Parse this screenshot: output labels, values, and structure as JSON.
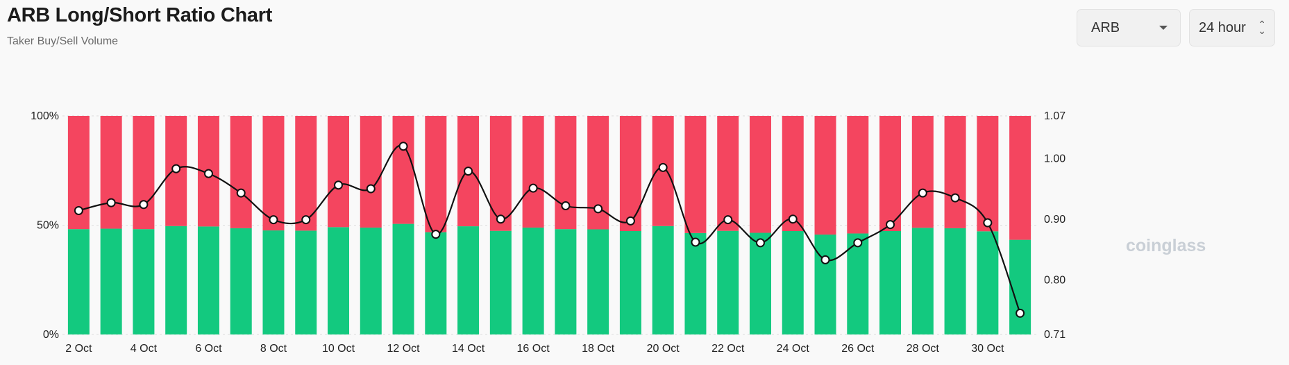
{
  "header": {
    "title": "ARB Long/Short Ratio Chart",
    "subtitle": "Taker Buy/Sell Volume"
  },
  "controls": {
    "coin": "ARB",
    "coin_icon": "chevron-down-icon",
    "period": "24 hour",
    "period_icon": "up-down-chevron-icon"
  },
  "watermark": "coinglass",
  "colors": {
    "long": "#13c97f",
    "short": "#f4455f",
    "ratio_line": "#111111"
  },
  "chart_data": {
    "type": "bar",
    "stacked": true,
    "categories": [
      "2 Oct",
      "3 Oct",
      "4 Oct",
      "5 Oct",
      "6 Oct",
      "7 Oct",
      "8 Oct",
      "9 Oct",
      "10 Oct",
      "11 Oct",
      "12 Oct",
      "13 Oct",
      "14 Oct",
      "15 Oct",
      "16 Oct",
      "17 Oct",
      "18 Oct",
      "19 Oct",
      "20 Oct",
      "21 Oct",
      "22 Oct",
      "23 Oct",
      "24 Oct",
      "25 Oct",
      "26 Oct",
      "27 Oct",
      "28 Oct",
      "29 Oct",
      "30 Oct",
      "31 Oct"
    ],
    "x_tick_labels": [
      "2 Oct",
      "4 Oct",
      "6 Oct",
      "8 Oct",
      "10 Oct",
      "12 Oct",
      "14 Oct",
      "16 Oct",
      "18 Oct",
      "20 Oct",
      "22 Oct",
      "24 Oct",
      "26 Oct",
      "28 Oct",
      "30 Oct"
    ],
    "series": [
      {
        "role": "long",
        "axis": "left",
        "values": [
          48.2,
          48.4,
          48.2,
          49.6,
          49.4,
          48.6,
          47.6,
          47.5,
          49.1,
          48.9,
          50.6,
          46.8,
          49.5,
          47.4,
          48.9,
          48.2,
          48.1,
          47.3,
          49.6,
          46.4,
          47.4,
          46.5,
          47.3,
          45.7,
          46.2,
          47.3,
          48.8,
          48.6,
          47.2,
          43.3
        ]
      },
      {
        "role": "short",
        "axis": "left",
        "values": [
          51.8,
          51.6,
          51.8,
          50.4,
          50.6,
          51.4,
          52.4,
          52.5,
          50.9,
          51.1,
          49.4,
          53.2,
          50.5,
          52.6,
          51.1,
          51.8,
          51.9,
          52.7,
          50.4,
          53.6,
          52.6,
          53.5,
          52.7,
          54.3,
          53.8,
          52.7,
          51.2,
          51.4,
          52.8,
          56.7
        ]
      },
      {
        "role": "ratio",
        "type": "line",
        "axis": "right",
        "values": [
          0.914,
          0.927,
          0.924,
          0.983,
          0.975,
          0.943,
          0.899,
          0.899,
          0.956,
          0.95,
          1.02,
          0.875,
          0.979,
          0.9,
          0.951,
          0.922,
          0.917,
          0.897,
          0.985,
          0.862,
          0.899,
          0.861,
          0.9,
          0.833,
          0.861,
          0.891,
          0.943,
          0.935,
          0.894,
          0.745
        ]
      }
    ],
    "y_left": {
      "ticks": [
        "0%",
        "50%",
        "100%"
      ],
      "range": [
        0,
        100
      ]
    },
    "y_right": {
      "ticks": [
        "0.71",
        "0.80",
        "0.90",
        "1.00",
        "1.07"
      ],
      "range": [
        0.71,
        1.07
      ]
    },
    "grid": true,
    "legend": "none"
  }
}
